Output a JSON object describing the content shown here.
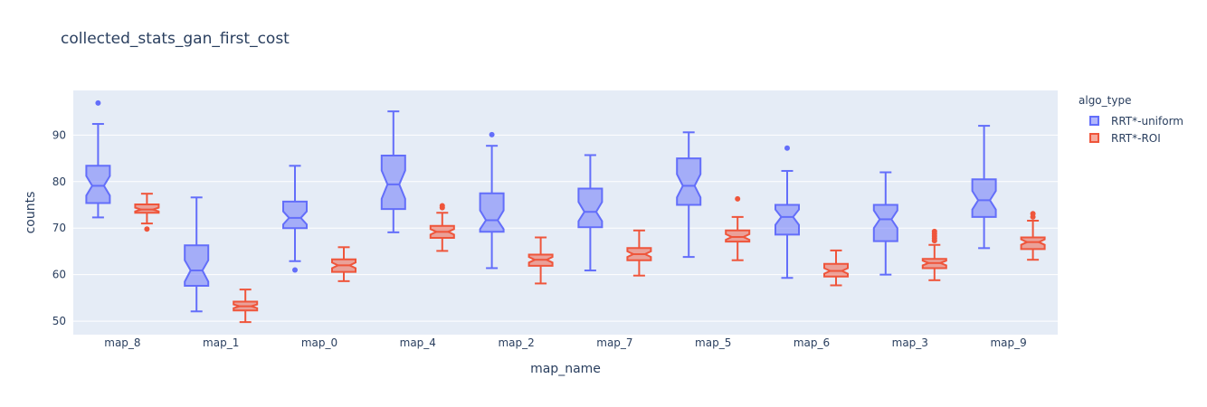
{
  "chart_data": {
    "type": "box",
    "title": "collected_stats_gan_first_cost",
    "xlabel": "map_name",
    "ylabel": "counts",
    "categories": [
      "map_8",
      "map_1",
      "map_0",
      "map_4",
      "map_2",
      "map_7",
      "map_5",
      "map_6",
      "map_3",
      "map_9"
    ],
    "yticks": [
      50,
      60,
      70,
      80,
      90
    ],
    "ylim": [
      47.1,
      99.6
    ],
    "notched": true,
    "legend": {
      "title": "algo_type",
      "placement": "right"
    },
    "series": [
      {
        "name": "RRT*-uniform",
        "color": "#636efa",
        "fill": "rgba(99,110,250,0.5)",
        "boxes": [
          {
            "min": 72.3,
            "q1": 75.4,
            "median": 79.1,
            "q3": 83.4,
            "max": 92.4,
            "notch_low": 77.0,
            "notch_high": 81.2,
            "outliers": [
              96.9
            ]
          },
          {
            "min": 52.1,
            "q1": 57.6,
            "median": 60.9,
            "q3": 66.3,
            "max": 76.6,
            "notch_low": 58.5,
            "notch_high": 63.1,
            "outliers": []
          },
          {
            "min": 62.9,
            "q1": 70.0,
            "median": 72.2,
            "q3": 75.7,
            "max": 83.4,
            "notch_low": 70.8,
            "notch_high": 73.6,
            "outliers": [
              61.0
            ]
          },
          {
            "min": 69.1,
            "q1": 74.1,
            "median": 79.4,
            "q3": 85.6,
            "max": 95.1,
            "notch_low": 76.3,
            "notch_high": 82.4,
            "outliers": []
          },
          {
            "min": 61.4,
            "q1": 69.2,
            "median": 71.7,
            "q3": 77.5,
            "max": 87.7,
            "notch_low": 69.8,
            "notch_high": 73.8,
            "outliers": [
              90.1
            ]
          },
          {
            "min": 60.9,
            "q1": 70.2,
            "median": 73.5,
            "q3": 78.5,
            "max": 85.7,
            "notch_low": 71.5,
            "notch_high": 75.6,
            "outliers": []
          },
          {
            "min": 63.8,
            "q1": 75.0,
            "median": 79.1,
            "q3": 85.0,
            "max": 90.6,
            "notch_low": 76.6,
            "notch_high": 81.6,
            "outliers": []
          },
          {
            "min": 59.3,
            "q1": 68.6,
            "median": 72.4,
            "q3": 75.0,
            "max": 82.3,
            "notch_low": 70.7,
            "notch_high": 74.0,
            "outliers": [
              87.2
            ]
          },
          {
            "min": 60.0,
            "q1": 67.2,
            "median": 71.9,
            "q3": 75.0,
            "max": 82.0,
            "notch_low": 70.0,
            "notch_high": 73.8,
            "outliers": []
          },
          {
            "min": 65.7,
            "q1": 72.4,
            "median": 76.0,
            "q3": 80.5,
            "max": 92.0,
            "notch_low": 74.0,
            "notch_high": 78.0,
            "outliers": []
          }
        ]
      },
      {
        "name": "RRT*-ROI",
        "color": "#ef553b",
        "fill": "rgba(239,85,59,0.5)",
        "boxes": [
          {
            "min": 71.0,
            "q1": 73.3,
            "median": 74.0,
            "q3": 75.1,
            "max": 77.4,
            "notch_low": 73.6,
            "notch_high": 74.4,
            "outliers": [
              69.8
            ]
          },
          {
            "min": 49.8,
            "q1": 52.3,
            "median": 53.2,
            "q3": 54.2,
            "max": 56.8,
            "notch_low": 52.8,
            "notch_high": 53.6,
            "outliers": []
          },
          {
            "min": 58.6,
            "q1": 60.6,
            "median": 62.0,
            "q3": 63.3,
            "max": 65.9,
            "notch_low": 61.4,
            "notch_high": 62.6,
            "outliers": []
          },
          {
            "min": 65.1,
            "q1": 67.9,
            "median": 69.2,
            "q3": 70.5,
            "max": 73.3,
            "notch_low": 68.6,
            "notch_high": 69.8,
            "outliers": [
              74.4,
              74.8
            ]
          },
          {
            "min": 58.1,
            "q1": 61.9,
            "median": 63.2,
            "q3": 64.3,
            "max": 68.0,
            "notch_low": 62.6,
            "notch_high": 63.8,
            "outliers": []
          },
          {
            "min": 59.8,
            "q1": 63.1,
            "median": 64.4,
            "q3": 65.7,
            "max": 69.5,
            "notch_low": 63.8,
            "notch_high": 65.0,
            "outliers": []
          },
          {
            "min": 63.1,
            "q1": 67.1,
            "median": 68.1,
            "q3": 69.5,
            "max": 72.4,
            "notch_low": 67.5,
            "notch_high": 68.7,
            "outliers": [
              76.3
            ]
          },
          {
            "min": 57.7,
            "q1": 59.6,
            "median": 60.8,
            "q3": 62.3,
            "max": 65.2,
            "notch_low": 60.2,
            "notch_high": 61.4,
            "outliers": []
          },
          {
            "min": 58.8,
            "q1": 61.4,
            "median": 62.5,
            "q3": 63.4,
            "max": 66.4,
            "notch_low": 62.0,
            "notch_high": 63.0,
            "outliers": [
              67.3,
              67.8,
              68.3,
              68.8,
              69.3
            ]
          },
          {
            "min": 63.2,
            "q1": 65.5,
            "median": 67.0,
            "q3": 68.0,
            "max": 71.6,
            "notch_low": 66.4,
            "notch_high": 67.6,
            "outliers": [
              72.4,
              73.1
            ]
          }
        ]
      }
    ]
  }
}
